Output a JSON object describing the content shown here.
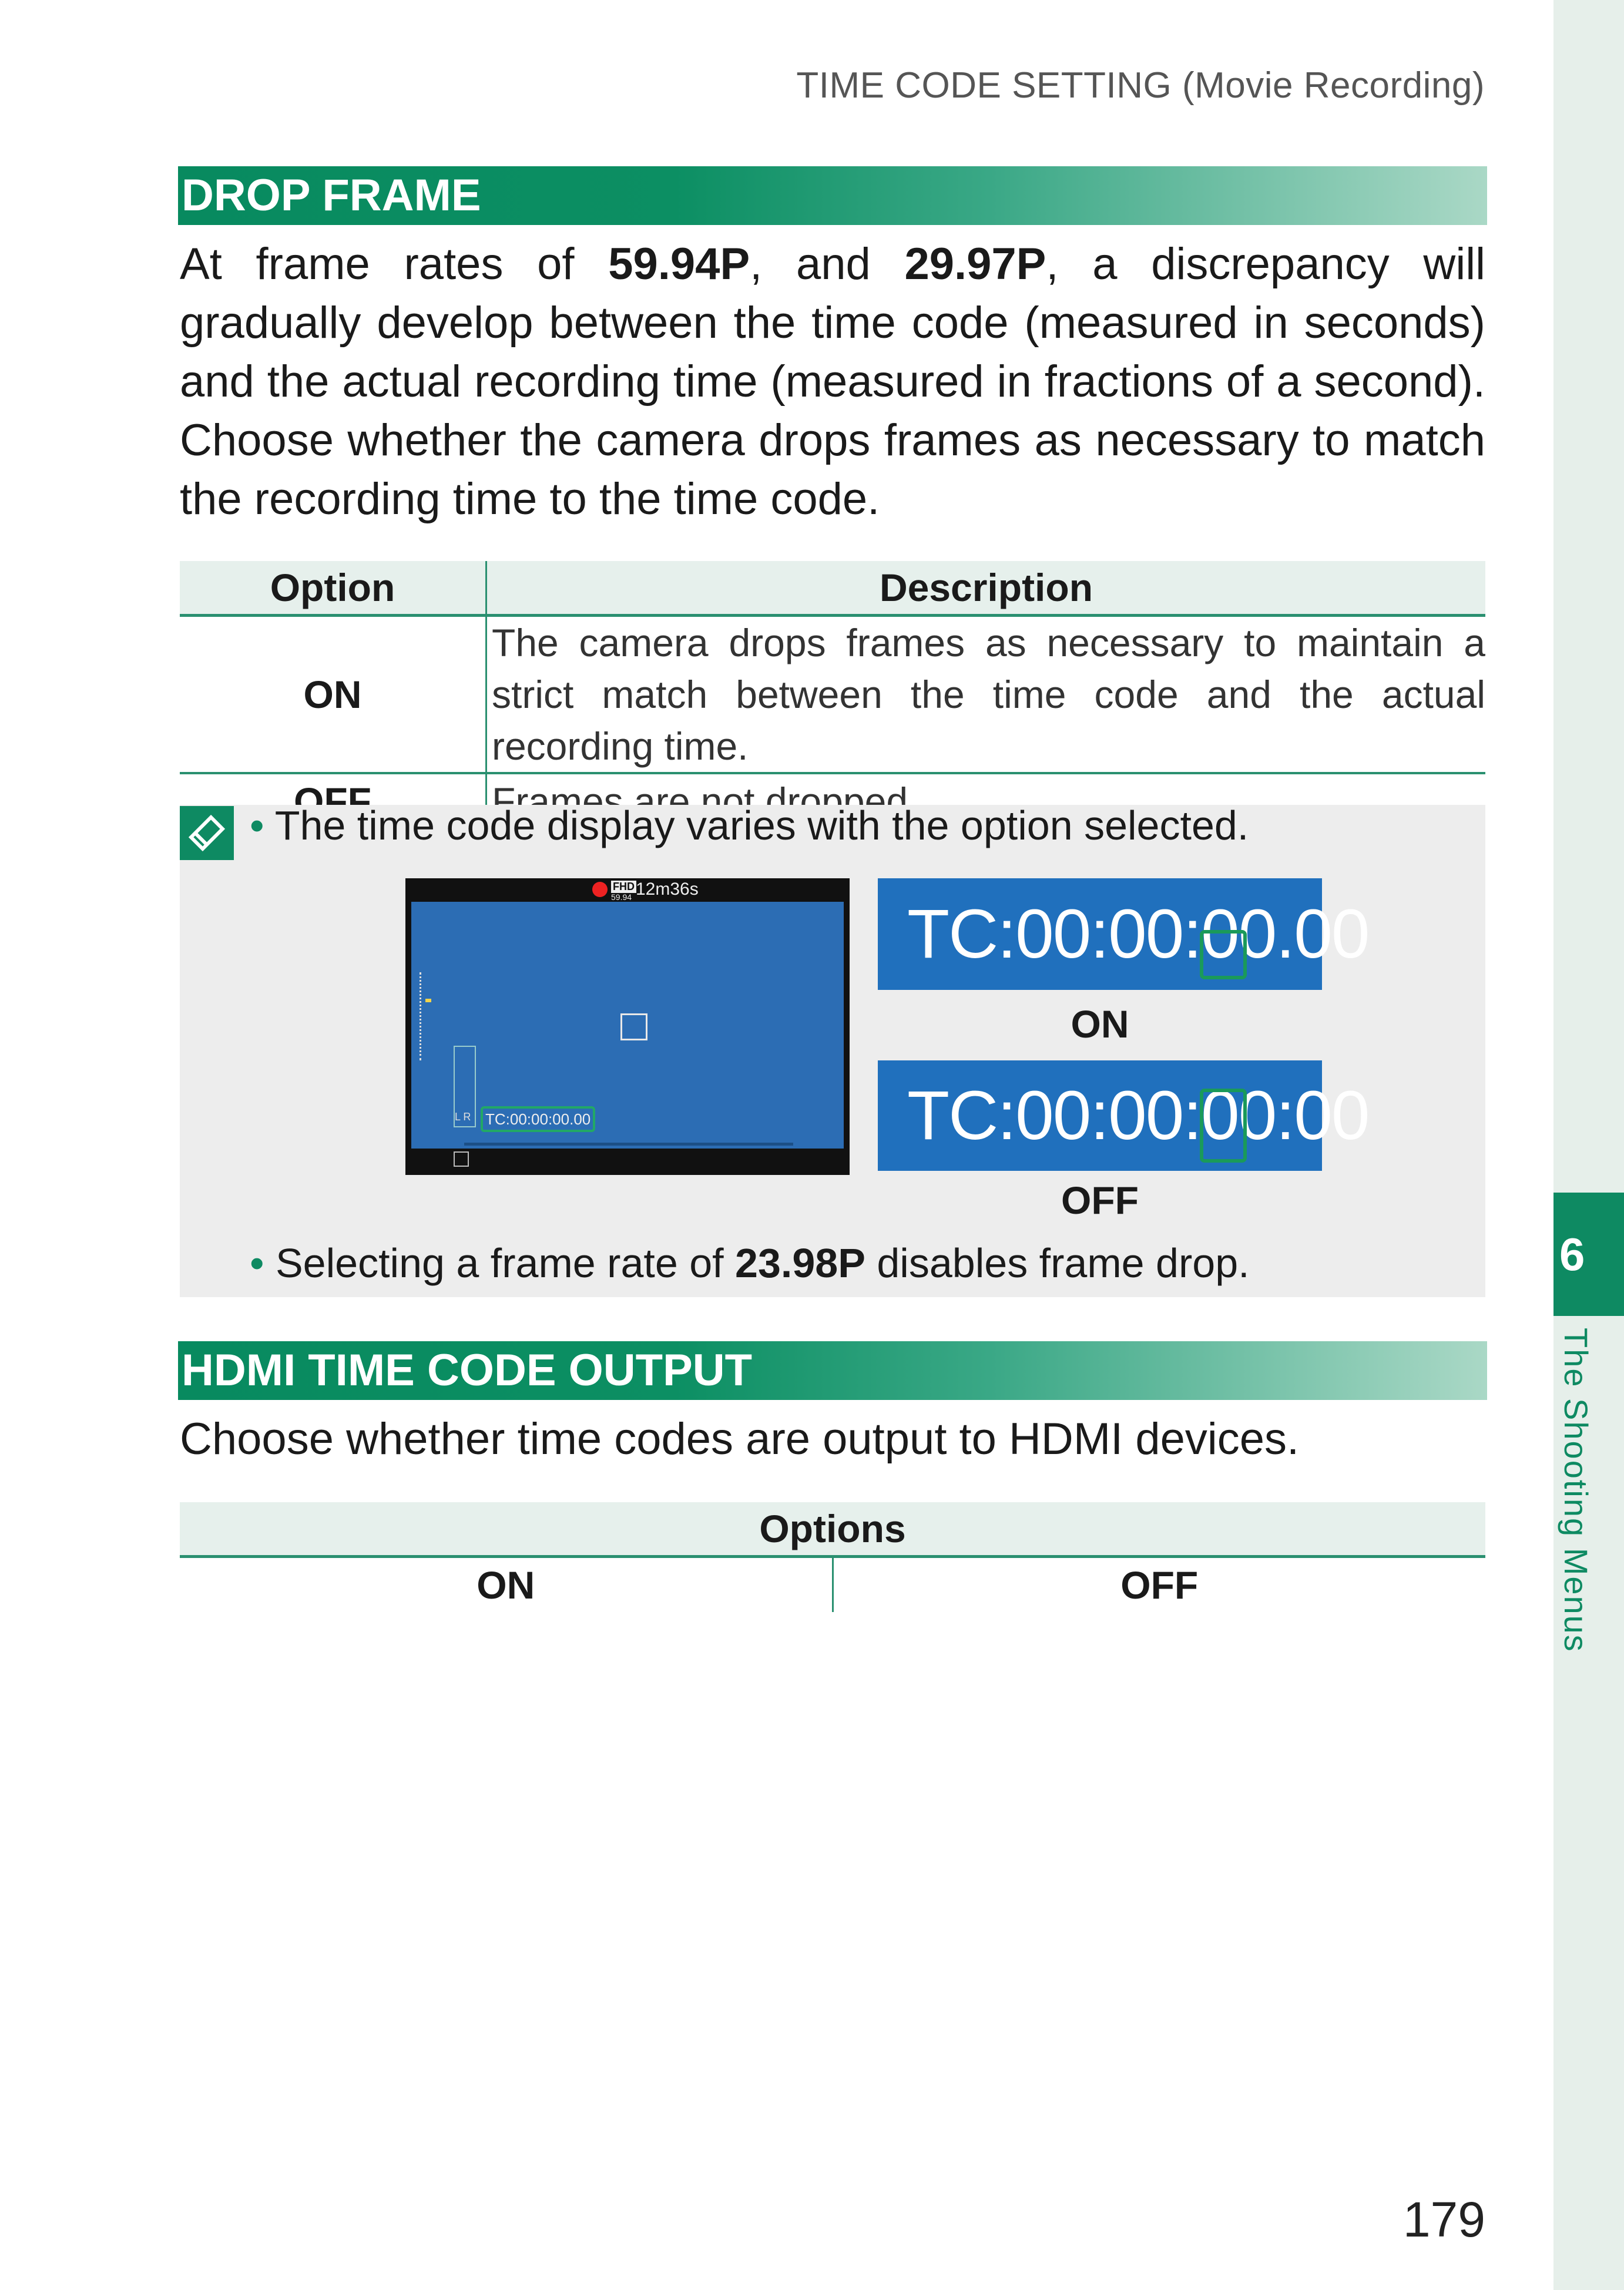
{
  "running_head": "TIME CODE SETTING (Movie Recording)",
  "chapter": {
    "number": "6",
    "title": "The Shooting Menus"
  },
  "drop_frame": {
    "heading": "DROP FRAME",
    "intro_a": "At frame rates of ",
    "rate1": "59.94P",
    "intro_b": ", and ",
    "rate2": "29.97P",
    "intro_c": ", a discrepancy will gradually develop between the time code (measured in seconds) and the actual recording time (measured in fractions of a second). Choose whether the camera drops frames as necessary to match the recording time to the time code.",
    "table": {
      "col_option": "Option",
      "col_description": "Description",
      "rows": [
        {
          "option": "ON",
          "description": "The camera drops frames as necessary to maintain a strict match between the time code and the actual recording time."
        },
        {
          "option": "OFF",
          "description": "Frames are not dropped."
        }
      ]
    },
    "note1": "The time code display varies with the option selected.",
    "camera_screen": {
      "remaining_time": "12m36s",
      "format_badge": "FHD",
      "frame_rate_small": "59.94",
      "timecode_small": "TC:00:00:00.00",
      "meter_labels": "L R"
    },
    "tc_on": {
      "prefix": "TC:00:00:00",
      "separator": ".",
      "suffix": "00",
      "label": "ON"
    },
    "tc_off": {
      "prefix": "TC:00:00:00",
      "separator": ":",
      "suffix": "00",
      "label": "OFF"
    },
    "note2_a": "Selecting a frame rate of ",
    "note2_rate": "23.98P",
    "note2_b": " disables frame drop."
  },
  "hdmi": {
    "heading": "HDMI TIME CODE OUTPUT",
    "text": "Choose whether time codes are output to HDMI devices.",
    "table_header": "Options",
    "options": [
      "ON",
      "OFF"
    ]
  },
  "page_number": "179",
  "colors": {
    "accent": "#0e8a62",
    "tc_blue": "#2070bd"
  }
}
